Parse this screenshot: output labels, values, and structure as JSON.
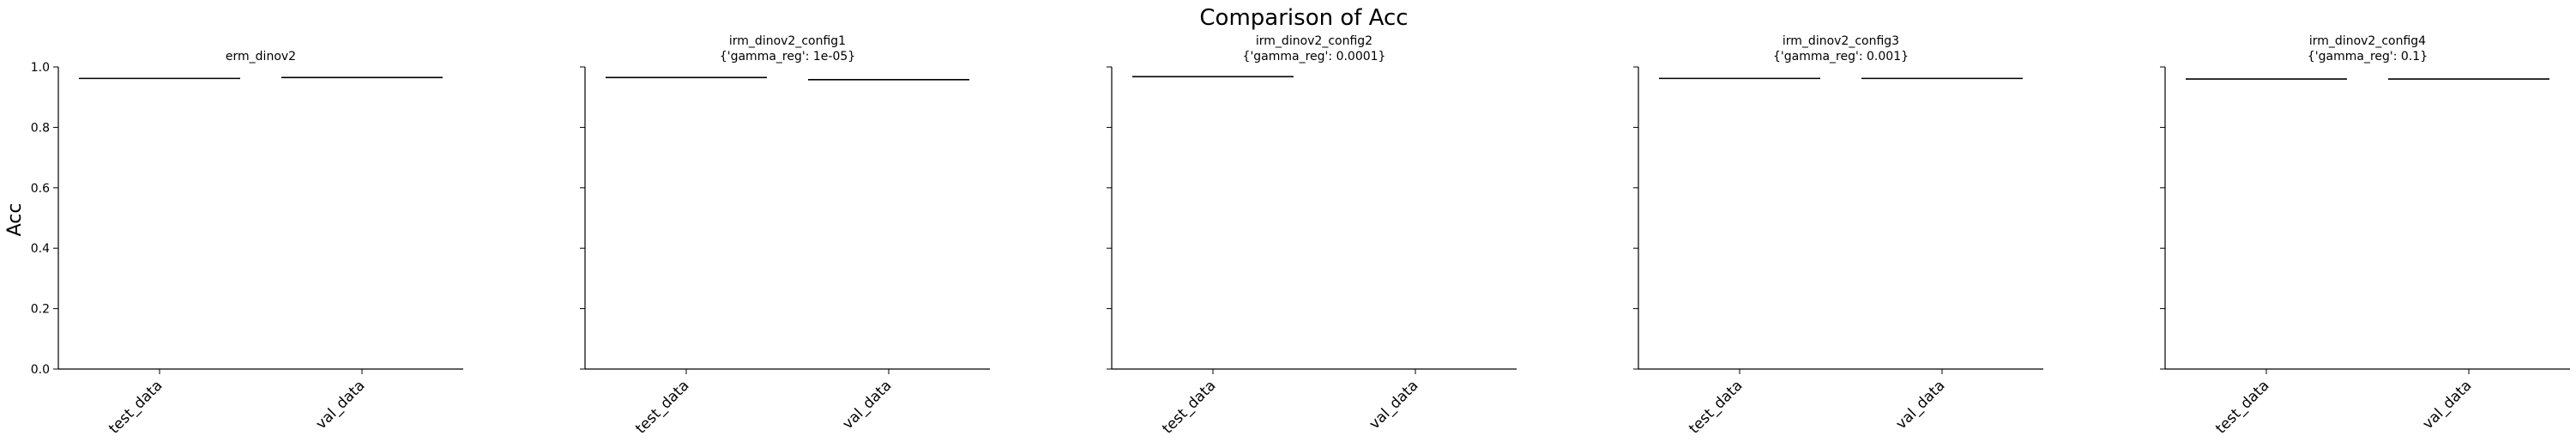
{
  "figure": {
    "suptitle": "Comparison of Acc",
    "ylabel": "Acc"
  },
  "chart_data": [
    {
      "type": "bar",
      "title": "erm_dinov2",
      "subtitle": "",
      "categories": [
        "test_data",
        "val_data"
      ],
      "values": [
        0.962,
        0.965
      ],
      "ylim": [
        0,
        1
      ],
      "yticks": [
        "0.0",
        "0.2",
        "0.4",
        "0.6",
        "0.8",
        "1.0"
      ],
      "grid": false
    },
    {
      "type": "bar",
      "title": "irm_dinov2_config1",
      "subtitle": "{'gamma_reg': 1e-05}",
      "categories": [
        "test_data",
        "val_data"
      ],
      "values": [
        0.965,
        0.958
      ],
      "ylim": [
        0,
        1
      ],
      "yticks": [
        "0.0",
        "0.2",
        "0.4",
        "0.6",
        "0.8",
        "1.0"
      ],
      "grid": false
    },
    {
      "type": "bar",
      "title": "irm_dinov2_config2",
      "subtitle": "{'gamma_reg': 0.0001}",
      "categories": [
        "test_data",
        "val_data"
      ],
      "values": [
        0.968,
        0.0
      ],
      "ylim": [
        0,
        1
      ],
      "yticks": [
        "0.0",
        "0.2",
        "0.4",
        "0.6",
        "0.8",
        "1.0"
      ],
      "grid": false
    },
    {
      "type": "bar",
      "title": "irm_dinov2_config3",
      "subtitle": "{'gamma_reg': 0.001}",
      "categories": [
        "test_data",
        "val_data"
      ],
      "values": [
        0.962,
        0.962
      ],
      "ylim": [
        0,
        1
      ],
      "yticks": [
        "0.0",
        "0.2",
        "0.4",
        "0.6",
        "0.8",
        "1.0"
      ],
      "grid": false
    },
    {
      "type": "bar",
      "title": "irm_dinov2_config4",
      "subtitle": "{'gamma_reg': 0.1}",
      "categories": [
        "test_data",
        "val_data"
      ],
      "values": [
        0.96,
        0.96
      ],
      "ylim": [
        0,
        1
      ],
      "yticks": [
        "0.0",
        "0.2",
        "0.4",
        "0.6",
        "0.8",
        "1.0"
      ],
      "grid": false
    }
  ]
}
